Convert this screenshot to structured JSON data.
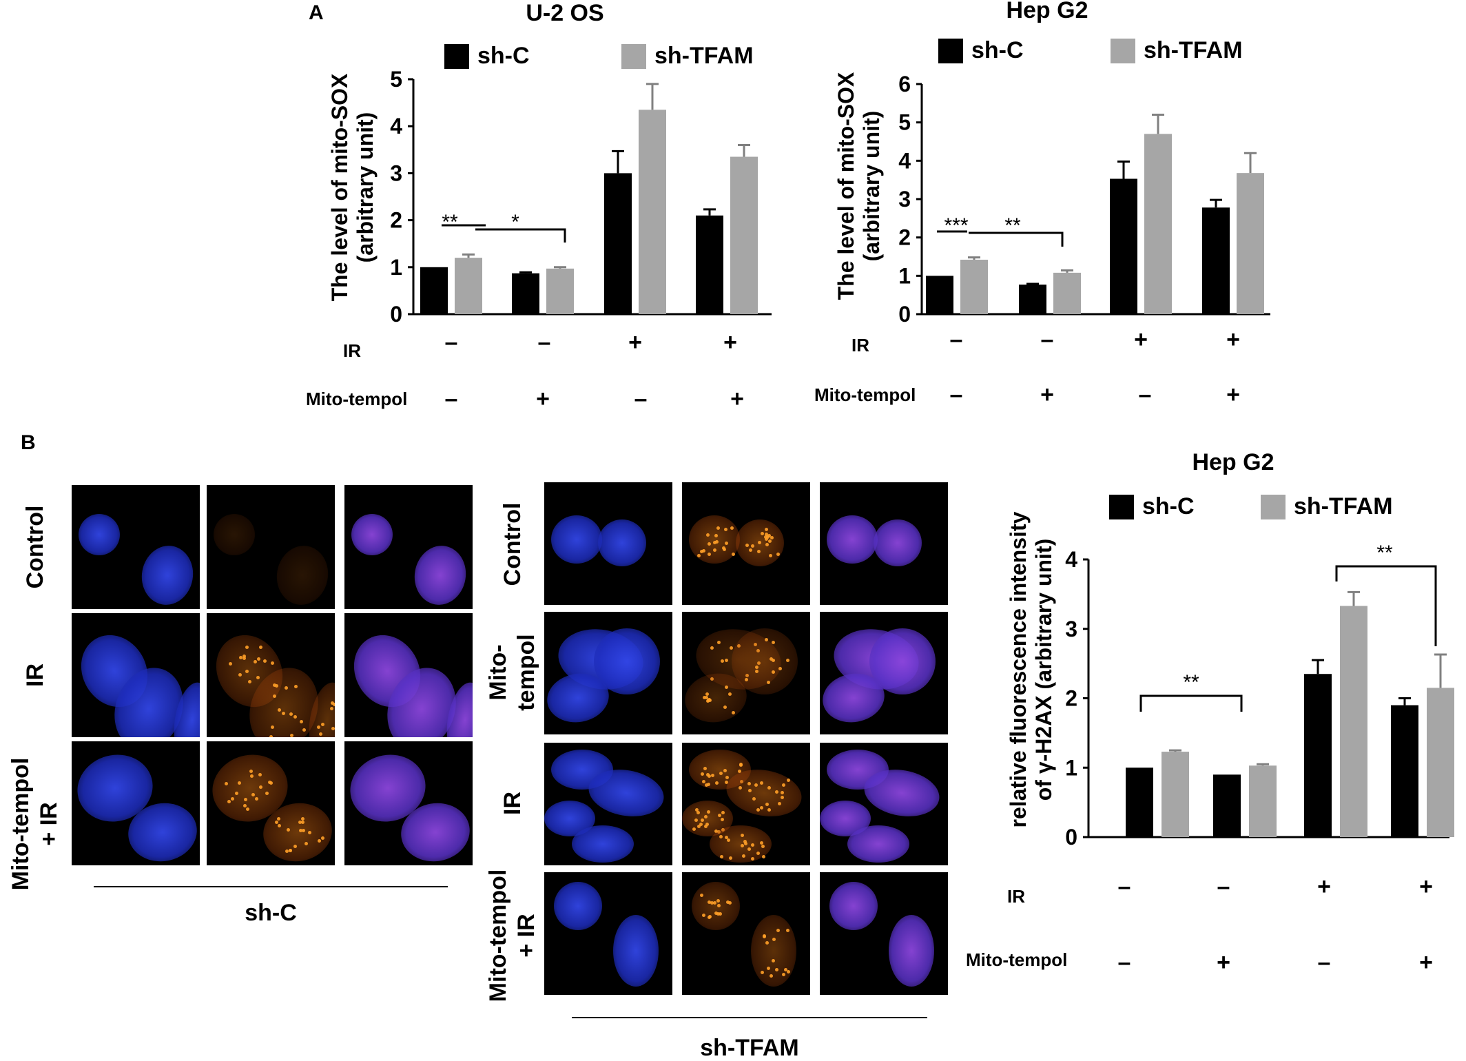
{
  "panel_a": {
    "letter": "A",
    "charts": [
      {
        "id": "chart-uos",
        "title": "U-2 OS",
        "legend": [
          "sh-C",
          "sh-TFAM"
        ],
        "ylabel_lines": [
          "The level of mito-SOX",
          "(arbitrary unit)"
        ],
        "row_labels": [
          "IR",
          "Mito-tempol"
        ],
        "ir_signs": [
          "–",
          "–",
          "+",
          "+"
        ],
        "mito_signs": [
          "–",
          "+",
          "–",
          "+"
        ],
        "sig": [
          {
            "text": "**"
          },
          {
            "text": "*"
          }
        ]
      },
      {
        "id": "chart-hep-a",
        "title": "Hep G2",
        "legend": [
          "sh-C",
          "sh-TFAM"
        ],
        "ylabel_lines": [
          "The level of mito-SOX",
          "(arbitrary unit)"
        ],
        "row_labels": [
          "IR",
          "Mito-tempol"
        ],
        "ir_signs": [
          "–",
          "–",
          "+",
          "+"
        ],
        "mito_signs": [
          "–",
          "+",
          "–",
          "+"
        ],
        "sig": [
          {
            "text": "***"
          },
          {
            "text": "**"
          }
        ]
      }
    ]
  },
  "panel_b": {
    "letter": "B",
    "shc_rows": [
      "Control",
      "IR",
      "Mito-tempol\n+ IR"
    ],
    "shc_group": "sh-C",
    "tfam_rows": [
      "Control",
      "Mito-\ntempol",
      "IR",
      "Mito-tempol\n+ IR"
    ],
    "tfam_group": "sh-TFAM",
    "chart": {
      "title": "Hep G2",
      "legend": [
        "sh-C",
        "sh-TFAM"
      ],
      "ylabel_lines": [
        "relative fluorescence intensity",
        "of γ-H2AX (arbitrary unit)"
      ],
      "row_labels": [
        "IR",
        "Mito-tempol"
      ],
      "ir_signs": [
        "–",
        "–",
        "+",
        "+"
      ],
      "mito_signs": [
        "–",
        "+",
        "–",
        "+"
      ],
      "sig": [
        {
          "text": "**"
        },
        {
          "text": "**"
        }
      ]
    }
  },
  "colors": {
    "shc": "#000000",
    "tfam": "#a6a6a6",
    "nucleus": "#1f2fc8",
    "foci": "#e07a10",
    "merge": "#7a3fd0"
  },
  "chart_data": [
    {
      "type": "bar",
      "title": "U-2 OS",
      "ylabel": "The level of mito-SOX (arbitrary unit)",
      "categories": [
        "IR – / Mito-tempol –",
        "IR – / Mito-tempol +",
        "IR + / Mito-tempol –",
        "IR + / Mito-tempol +"
      ],
      "ylim": [
        0,
        5
      ],
      "yticks": [
        0,
        1,
        2,
        3,
        4,
        5
      ],
      "legend_position": "top",
      "series": [
        {
          "name": "sh-C",
          "values": [
            1.0,
            0.87,
            3.0,
            2.1
          ],
          "errors": [
            0,
            0.02,
            0.47,
            0.13
          ]
        },
        {
          "name": "sh-TFAM",
          "values": [
            1.2,
            0.97,
            4.35,
            3.35
          ],
          "errors": [
            0.07,
            0.03,
            0.55,
            0.25
          ]
        }
      ]
    },
    {
      "type": "bar",
      "title": "Hep G2",
      "ylabel": "The level of mito-SOX (arbitrary unit)",
      "categories": [
        "IR – / Mito-tempol –",
        "IR – / Mito-tempol +",
        "IR + / Mito-tempol –",
        "IR + / Mito-tempol +"
      ],
      "ylim": [
        0,
        6
      ],
      "yticks": [
        0,
        1,
        2,
        3,
        4,
        5,
        6
      ],
      "legend_position": "top",
      "series": [
        {
          "name": "sh-C",
          "values": [
            1.0,
            0.77,
            3.53,
            2.78
          ],
          "errors": [
            0,
            0.02,
            0.45,
            0.2
          ]
        },
        {
          "name": "sh-TFAM",
          "values": [
            1.42,
            1.08,
            4.7,
            3.68
          ],
          "errors": [
            0.06,
            0.06,
            0.5,
            0.52
          ]
        }
      ]
    },
    {
      "type": "bar",
      "title": "Hep G2",
      "ylabel": "relative fluorescence intensity of γ-H2AX (arbitrary unit)",
      "categories": [
        "IR – / Mito-tempol –",
        "IR – / Mito-tempol +",
        "IR + / Mito-tempol –",
        "IR + / Mito-tempol +"
      ],
      "ylim": [
        0,
        4
      ],
      "yticks": [
        0,
        1,
        2,
        3,
        4
      ],
      "legend_position": "top",
      "series": [
        {
          "name": "sh-C",
          "values": [
            1.0,
            0.9,
            2.35,
            1.9
          ],
          "errors": [
            0,
            0,
            0.2,
            0.1
          ]
        },
        {
          "name": "sh-TFAM",
          "values": [
            1.23,
            1.03,
            3.33,
            2.15
          ],
          "errors": [
            0.02,
            0.02,
            0.2,
            0.48
          ]
        }
      ]
    }
  ]
}
